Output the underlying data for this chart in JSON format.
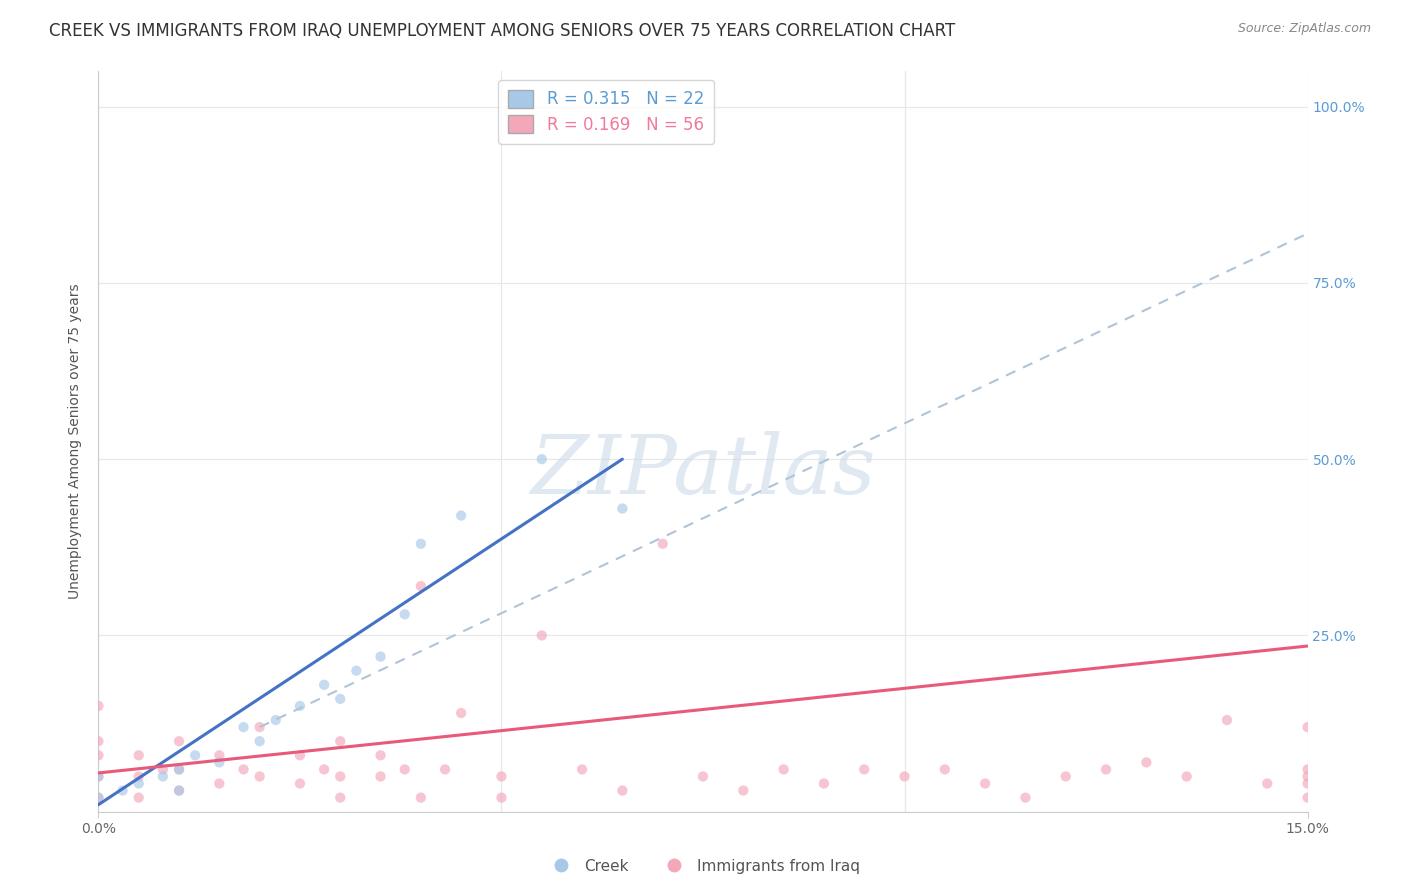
{
  "title": "CREEK VS IMMIGRANTS FROM IRAQ UNEMPLOYMENT AMONG SENIORS OVER 75 YEARS CORRELATION CHART",
  "source": "Source: ZipAtlas.com",
  "ylabel": "Unemployment Among Seniors over 75 years",
  "xlim": [
    0.0,
    0.15
  ],
  "ylim": [
    0.0,
    1.05
  ],
  "y_ticks": [
    0.0,
    0.25,
    0.5,
    0.75,
    1.0
  ],
  "y_tick_labels_right": [
    "",
    "25.0%",
    "50.0%",
    "75.0%",
    "100.0%"
  ],
  "x_ticks": [
    0.0,
    0.15
  ],
  "x_tick_labels": [
    "0.0%",
    "15.0%"
  ],
  "legend_entries": [
    {
      "label": "R = 0.315   N = 22",
      "color": "#5b9bd5"
    },
    {
      "label": "R = 0.169   N = 56",
      "color": "#f07a9a"
    }
  ],
  "creek_color": "#a8c8e8",
  "iraq_color": "#f4a7b9",
  "creek_line_color": "#4472c4",
  "iraq_line_color": "#e85a7a",
  "dash_line_color": "#b0c4d8",
  "watermark_text": "ZIPatlas",
  "watermark_color": "#c8d8e8",
  "background_color": "#ffffff",
  "grid_color": "#e8e8e8",
  "title_fontsize": 12,
  "tick_fontsize": 10,
  "scatter_size": 55,
  "scatter_alpha": 0.65,
  "creek_points_x": [
    0.0,
    0.0,
    0.003,
    0.005,
    0.008,
    0.01,
    0.01,
    0.012,
    0.015,
    0.018,
    0.02,
    0.022,
    0.025,
    0.028,
    0.03,
    0.032,
    0.035,
    0.038,
    0.04,
    0.045,
    0.055,
    0.065
  ],
  "creek_points_y": [
    0.02,
    0.05,
    0.03,
    0.04,
    0.05,
    0.03,
    0.06,
    0.08,
    0.07,
    0.12,
    0.1,
    0.13,
    0.15,
    0.18,
    0.16,
    0.2,
    0.22,
    0.28,
    0.38,
    0.42,
    0.5,
    0.43
  ],
  "iraq_points_x": [
    0.0,
    0.0,
    0.0,
    0.0,
    0.0,
    0.005,
    0.005,
    0.005,
    0.008,
    0.01,
    0.01,
    0.01,
    0.015,
    0.015,
    0.018,
    0.02,
    0.02,
    0.025,
    0.025,
    0.028,
    0.03,
    0.03,
    0.03,
    0.035,
    0.035,
    0.038,
    0.04,
    0.04,
    0.043,
    0.045,
    0.05,
    0.05,
    0.055,
    0.06,
    0.065,
    0.07,
    0.075,
    0.08,
    0.085,
    0.09,
    0.095,
    0.1,
    0.105,
    0.11,
    0.115,
    0.12,
    0.125,
    0.13,
    0.135,
    0.14,
    0.145,
    0.15,
    0.15,
    0.15,
    0.15,
    0.15
  ],
  "iraq_points_y": [
    0.02,
    0.05,
    0.08,
    0.1,
    0.15,
    0.02,
    0.05,
    0.08,
    0.06,
    0.03,
    0.06,
    0.1,
    0.04,
    0.08,
    0.06,
    0.05,
    0.12,
    0.04,
    0.08,
    0.06,
    0.02,
    0.05,
    0.1,
    0.05,
    0.08,
    0.06,
    0.02,
    0.32,
    0.06,
    0.14,
    0.02,
    0.05,
    0.25,
    0.06,
    0.03,
    0.38,
    0.05,
    0.03,
    0.06,
    0.04,
    0.06,
    0.05,
    0.06,
    0.04,
    0.02,
    0.05,
    0.06,
    0.07,
    0.05,
    0.13,
    0.04,
    0.02,
    0.06,
    0.12,
    0.05,
    0.04
  ],
  "creek_line_x0": 0.0,
  "creek_line_y0": 0.01,
  "creek_line_x1": 0.065,
  "creek_line_y1": 0.5,
  "iraq_line_x0": 0.0,
  "iraq_line_y0": 0.055,
  "iraq_line_x1": 0.15,
  "iraq_line_y1": 0.235,
  "dash_line_x0": 0.02,
  "dash_line_y0": 0.12,
  "dash_line_x1": 0.15,
  "dash_line_y1": 0.82
}
